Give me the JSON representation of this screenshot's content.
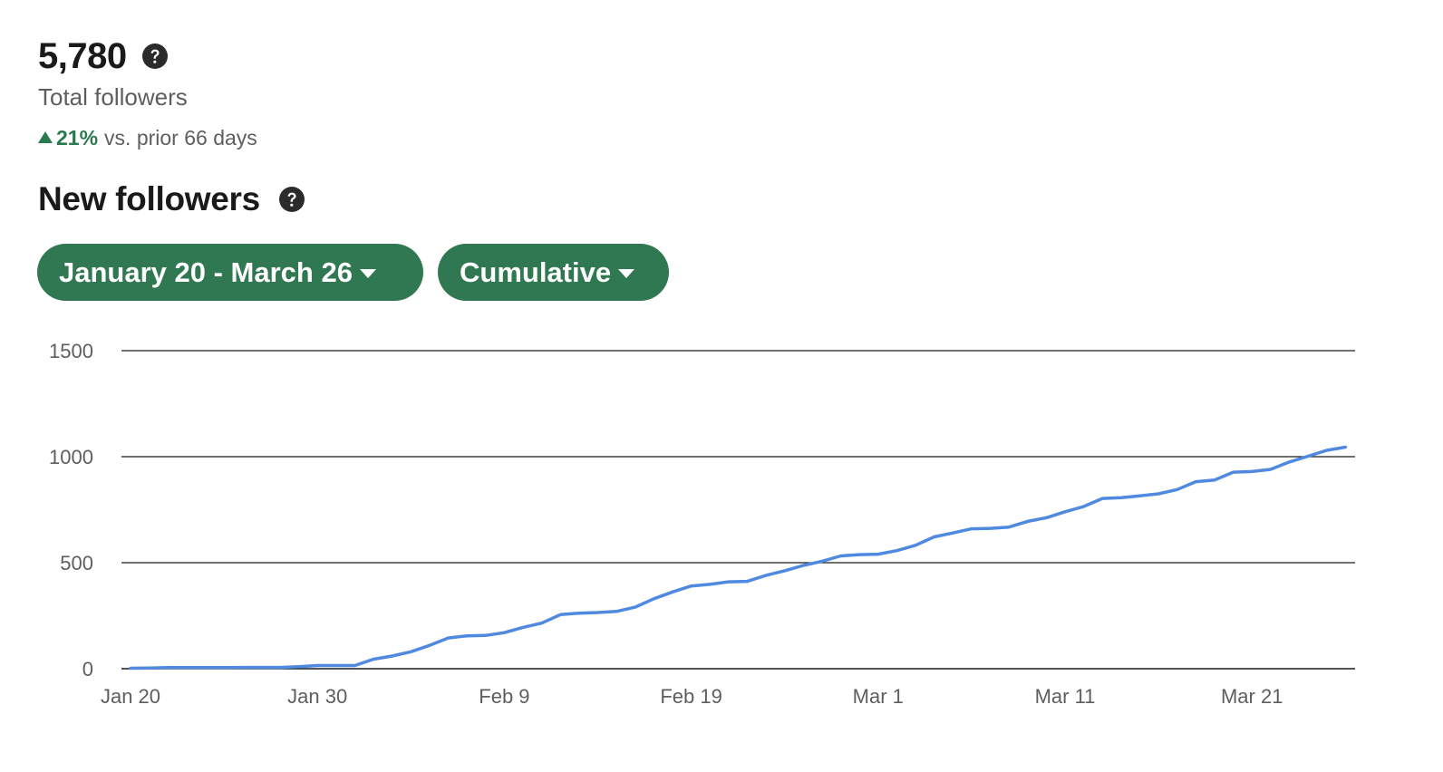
{
  "summary": {
    "total_value": "5,780",
    "total_label": "Total followers",
    "delta_pct": "21%",
    "delta_text": "vs. prior 66 days"
  },
  "section": {
    "title": "New followers"
  },
  "filters": {
    "date_range": "January 20 - March 26",
    "mode": "Cumulative"
  },
  "colors": {
    "accent_green": "#307851",
    "positive_green": "#2a7a4e",
    "line_blue": "#4f89e0"
  },
  "icons": {
    "help": "question-circle-icon",
    "caret": "caret-down-icon",
    "delta": "triangle-up-icon"
  },
  "chart_data": {
    "type": "line",
    "title": "",
    "xlabel": "",
    "ylabel": "",
    "ylim": [
      0,
      1500
    ],
    "yticks": [
      0,
      500,
      1000,
      1500
    ],
    "xtick_labels": [
      "Jan 20",
      "Jan 30",
      "Feb 9",
      "Feb 19",
      "Mar 1",
      "Mar 11",
      "Mar 21"
    ],
    "xtick_day_index": [
      0,
      10,
      20,
      30,
      40,
      50,
      60
    ],
    "grid": true,
    "legend": "none",
    "x": [
      "Jan 20",
      "Jan 21",
      "Jan 22",
      "Jan 23",
      "Jan 24",
      "Jan 25",
      "Jan 26",
      "Jan 27",
      "Jan 28",
      "Jan 29",
      "Jan 30",
      "Jan 31",
      "Feb 1",
      "Feb 2",
      "Feb 3",
      "Feb 4",
      "Feb 5",
      "Feb 6",
      "Feb 7",
      "Feb 8",
      "Feb 9",
      "Feb 10",
      "Feb 11",
      "Feb 12",
      "Feb 13",
      "Feb 14",
      "Feb 15",
      "Feb 16",
      "Feb 17",
      "Feb 18",
      "Feb 19",
      "Feb 20",
      "Feb 21",
      "Feb 22",
      "Feb 23",
      "Feb 24",
      "Feb 25",
      "Feb 26",
      "Feb 27",
      "Feb 28",
      "Mar 1",
      "Mar 2",
      "Mar 3",
      "Mar 4",
      "Mar 5",
      "Mar 6",
      "Mar 7",
      "Mar 8",
      "Mar 9",
      "Mar 10",
      "Mar 11",
      "Mar 12",
      "Mar 13",
      "Mar 14",
      "Mar 15",
      "Mar 16",
      "Mar 17",
      "Mar 18",
      "Mar 19",
      "Mar 20",
      "Mar 21",
      "Mar 22",
      "Mar 23",
      "Mar 24",
      "Mar 25",
      "Mar 26"
    ],
    "series": [
      {
        "values": [
          2,
          3,
          5,
          5,
          5,
          5,
          6,
          6,
          6,
          10,
          15,
          15,
          15,
          45,
          60,
          80,
          110,
          145,
          155,
          157,
          170,
          195,
          215,
          255,
          262,
          265,
          270,
          290,
          330,
          362,
          390,
          398,
          410,
          412,
          440,
          462,
          487,
          507,
          532,
          538,
          540,
          557,
          582,
          622,
          640,
          660,
          662,
          668,
          695,
          712,
          740,
          765,
          803,
          807,
          815,
          825,
          845,
          882,
          890,
          927,
          930,
          940,
          975,
          1002,
          1030,
          1045
        ]
      }
    ]
  }
}
